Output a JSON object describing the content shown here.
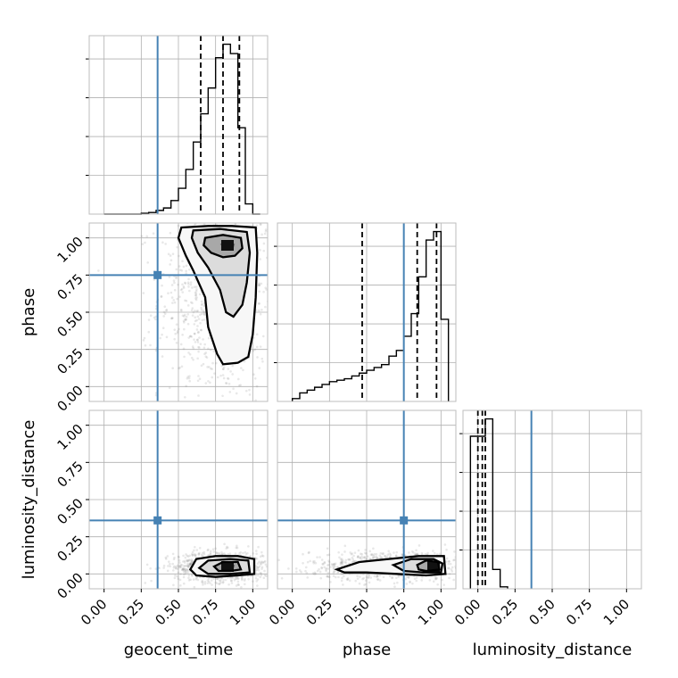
{
  "chart_data": {
    "type": "corner",
    "parameters": [
      "geocent_time",
      "phase",
      "luminosity_distance"
    ],
    "axis_range": [
      -0.1,
      1.1
    ],
    "tick_values": [
      0.0,
      0.25,
      0.5,
      0.75,
      1.0
    ],
    "tick_labels": [
      "0.00",
      "0.25",
      "0.50",
      "0.75",
      "1.00"
    ],
    "grid": true,
    "colors": {
      "truth": "#4682b4",
      "histogram": "#000000",
      "points": "#808080",
      "frame": "#bdbdbd"
    },
    "truths": {
      "geocent_time": 0.36,
      "phase": 0.75,
      "luminosity_distance": 0.36
    },
    "histograms": {
      "geocent_time": {
        "bin_edges": [
          0.0,
          0.05,
          0.1,
          0.15,
          0.2,
          0.25,
          0.3,
          0.35,
          0.4,
          0.45,
          0.5,
          0.55,
          0.6,
          0.65,
          0.7,
          0.75,
          0.8,
          0.85,
          0.9,
          0.95,
          1.0,
          1.05
        ],
        "counts": [
          0,
          0,
          0,
          0,
          0,
          0.2,
          0.4,
          0.9,
          1.5,
          3.3,
          6.3,
          10.9,
          17.6,
          24.5,
          30.8,
          38.2,
          41.5,
          39.2,
          21.1,
          2.5,
          0
        ],
        "quantiles": [
          0.65,
          0.8,
          0.91
        ]
      },
      "phase": {
        "bin_edges": [
          0.0,
          0.05,
          0.1,
          0.15,
          0.2,
          0.25,
          0.3,
          0.35,
          0.4,
          0.45,
          0.5,
          0.55,
          0.6,
          0.65,
          0.7,
          0.75,
          0.8,
          0.85,
          0.9,
          0.95,
          1.0,
          1.05
        ],
        "counts": [
          1,
          3,
          4,
          5,
          6,
          7,
          7.5,
          8,
          9,
          10,
          11,
          12,
          13,
          16,
          18,
          23,
          31,
          44,
          57,
          60,
          29
        ],
        "quantiles": [
          0.47,
          0.84,
          0.97
        ]
      },
      "luminosity_distance": {
        "bin_edges": [
          -0.05,
          -0.025,
          0.0,
          0.025,
          0.05,
          0.075,
          0.1,
          0.125,
          0.15,
          0.175,
          0.2
        ],
        "counts": [
          79,
          79,
          79,
          79,
          88,
          88,
          10,
          10,
          1,
          1
        ],
        "quantiles": [
          0.0,
          0.03,
          0.05
        ]
      }
    },
    "pairs": [
      {
        "x": "geocent_time",
        "y": "phase",
        "peak": [
          0.83,
          0.95
        ],
        "contours": [
          [
            [
              0.52,
              1.07
            ],
            [
              0.7,
              1.08
            ],
            [
              0.86,
              1.08
            ],
            [
              1.02,
              1.07
            ],
            [
              1.03,
              0.9
            ],
            [
              1.02,
              0.6
            ],
            [
              1.0,
              0.35
            ],
            [
              0.97,
              0.2
            ],
            [
              0.9,
              0.16
            ],
            [
              0.8,
              0.15
            ],
            [
              0.76,
              0.22
            ],
            [
              0.7,
              0.4
            ],
            [
              0.68,
              0.6
            ],
            [
              0.6,
              0.78
            ],
            [
              0.55,
              0.88
            ],
            [
              0.5,
              1.0
            ]
          ],
          [
            [
              0.6,
              1.05
            ],
            [
              0.78,
              1.06
            ],
            [
              0.96,
              1.04
            ],
            [
              0.98,
              0.9
            ],
            [
              0.96,
              0.7
            ],
            [
              0.93,
              0.55
            ],
            [
              0.87,
              0.47
            ],
            [
              0.82,
              0.5
            ],
            [
              0.78,
              0.65
            ],
            [
              0.7,
              0.8
            ],
            [
              0.63,
              0.9
            ],
            [
              0.59,
              1.0
            ]
          ],
          [
            [
              0.68,
              1.0
            ],
            [
              0.8,
              1.02
            ],
            [
              0.92,
              1.0
            ],
            [
              0.93,
              0.93
            ],
            [
              0.88,
              0.88
            ],
            [
              0.8,
              0.87
            ],
            [
              0.72,
              0.9
            ],
            [
              0.67,
              0.95
            ]
          ],
          [
            [
              0.78,
              0.96
            ],
            [
              0.83,
              0.97
            ],
            [
              0.88,
              0.96
            ],
            [
              0.87,
              0.93
            ],
            [
              0.8,
              0.93
            ]
          ]
        ]
      },
      {
        "x": "geocent_time",
        "y": "luminosity_distance",
        "peak": [
          0.83,
          0.05
        ],
        "contours": [
          [
            [
              0.58,
              0.03
            ],
            [
              0.62,
              0.1
            ],
            [
              0.75,
              0.12
            ],
            [
              0.9,
              0.12
            ],
            [
              1.01,
              0.1
            ],
            [
              1.01,
              0.0
            ],
            [
              0.9,
              -0.01
            ],
            [
              0.75,
              -0.02
            ],
            [
              0.62,
              -0.01
            ]
          ],
          [
            [
              0.64,
              0.04
            ],
            [
              0.7,
              0.09
            ],
            [
              0.85,
              0.1
            ],
            [
              0.97,
              0.09
            ],
            [
              0.98,
              0.01
            ],
            [
              0.85,
              0.0
            ],
            [
              0.7,
              0.0
            ]
          ],
          [
            [
              0.74,
              0.05
            ],
            [
              0.8,
              0.08
            ],
            [
              0.9,
              0.08
            ],
            [
              0.92,
              0.03
            ],
            [
              0.85,
              0.02
            ],
            [
              0.77,
              0.02
            ]
          ],
          [
            [
              0.79,
              0.05
            ],
            [
              0.83,
              0.07
            ],
            [
              0.88,
              0.06
            ],
            [
              0.87,
              0.03
            ],
            [
              0.81,
              0.03
            ]
          ]
        ]
      },
      {
        "x": "phase",
        "y": "luminosity_distance",
        "peak": [
          0.95,
          0.05
        ],
        "contours": [
          [
            [
              0.3,
              0.03
            ],
            [
              0.45,
              0.08
            ],
            [
              0.65,
              0.1
            ],
            [
              0.85,
              0.12
            ],
            [
              1.02,
              0.12
            ],
            [
              1.03,
              0.0
            ],
            [
              0.9,
              -0.01
            ],
            [
              0.7,
              0.0
            ],
            [
              0.5,
              0.01
            ],
            [
              0.35,
              0.01
            ]
          ],
          [
            [
              0.68,
              0.06
            ],
            [
              0.8,
              0.1
            ],
            [
              0.95,
              0.1
            ],
            [
              1.01,
              0.07
            ],
            [
              1.0,
              0.01
            ],
            [
              0.88,
              0.01
            ],
            [
              0.75,
              0.02
            ]
          ],
          [
            [
              0.84,
              0.06
            ],
            [
              0.9,
              0.09
            ],
            [
              0.98,
              0.08
            ],
            [
              0.99,
              0.03
            ],
            [
              0.9,
              0.02
            ],
            [
              0.85,
              0.03
            ]
          ],
          [
            [
              0.91,
              0.05
            ],
            [
              0.95,
              0.075
            ],
            [
              0.98,
              0.06
            ],
            [
              0.97,
              0.03
            ],
            [
              0.92,
              0.03
            ]
          ]
        ]
      }
    ]
  }
}
